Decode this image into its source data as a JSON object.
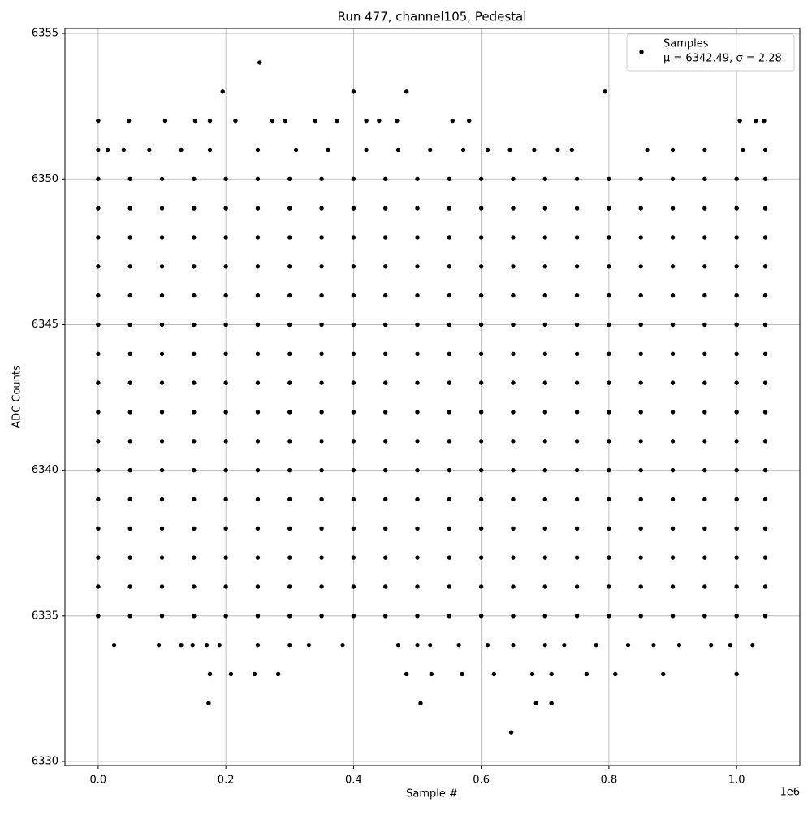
{
  "chart_data": {
    "type": "scatter",
    "title": "Run 477, channel105, Pedestal",
    "x_label": "Sample #",
    "y_label": "ADC Counts",
    "x_offset_label": "1e6",
    "xlim": [
      -52000,
      1099000
    ],
    "ylim": [
      6329.86,
      6355.17
    ],
    "xticks": [
      {
        "value": 0,
        "label": "0.0"
      },
      {
        "value": 200000,
        "label": "0.2"
      },
      {
        "value": 400000,
        "label": "0.4"
      },
      {
        "value": 600000,
        "label": "0.6"
      },
      {
        "value": 800000,
        "label": "0.8"
      },
      {
        "value": 1000000,
        "label": "1.0"
      }
    ],
    "yticks": [
      6330,
      6335,
      6340,
      6345,
      6350,
      6355
    ],
    "grid": true,
    "legend": "upper right",
    "series": [
      {
        "name": "Samples",
        "legend_note": "μ = 6342.49, σ = 2.28",
        "color": "#000000",
        "x": [
          0,
          50000,
          100000,
          150000,
          200000,
          250000,
          300000,
          350000,
          400000,
          450000,
          500000,
          550000,
          600000,
          650000,
          700000,
          750000,
          800000,
          850000,
          900000,
          950000,
          1000000,
          1045000,
          0,
          50000,
          100000,
          150000,
          200000,
          250000,
          300000,
          350000,
          400000,
          450000,
          500000,
          550000,
          600000,
          650000,
          700000,
          750000,
          800000,
          850000,
          900000,
          950000,
          1000000,
          1045000,
          0,
          50000,
          100000,
          150000,
          200000,
          250000,
          300000,
          350000,
          400000,
          450000,
          500000,
          550000,
          600000,
          650000,
          700000,
          750000,
          800000,
          850000,
          900000,
          950000,
          1000000,
          1045000,
          0,
          50000,
          100000,
          150000,
          200000,
          250000,
          300000,
          350000,
          400000,
          450000,
          500000,
          550000,
          600000,
          650000,
          700000,
          750000,
          800000,
          850000,
          900000,
          950000,
          1000000,
          1045000,
          0,
          50000,
          100000,
          150000,
          200000,
          250000,
          300000,
          350000,
          400000,
          450000,
          500000,
          550000,
          600000,
          650000,
          700000,
          750000,
          800000,
          850000,
          900000,
          950000,
          1000000,
          1045000,
          0,
          50000,
          100000,
          150000,
          200000,
          250000,
          300000,
          350000,
          400000,
          450000,
          500000,
          550000,
          600000,
          650000,
          700000,
          750000,
          800000,
          850000,
          900000,
          950000,
          1000000,
          1045000,
          0,
          50000,
          100000,
          150000,
          200000,
          250000,
          300000,
          350000,
          400000,
          450000,
          500000,
          550000,
          600000,
          650000,
          700000,
          750000,
          800000,
          850000,
          900000,
          950000,
          1000000,
          1045000,
          0,
          50000,
          100000,
          150000,
          200000,
          250000,
          300000,
          350000,
          400000,
          450000,
          500000,
          550000,
          600000,
          650000,
          700000,
          750000,
          800000,
          850000,
          900000,
          950000,
          1000000,
          1045000,
          0,
          50000,
          100000,
          150000,
          200000,
          250000,
          300000,
          350000,
          400000,
          450000,
          500000,
          550000,
          600000,
          650000,
          700000,
          750000,
          800000,
          850000,
          900000,
          950000,
          1000000,
          1045000,
          0,
          50000,
          100000,
          150000,
          200000,
          250000,
          300000,
          350000,
          400000,
          450000,
          500000,
          550000,
          600000,
          650000,
          700000,
          750000,
          800000,
          850000,
          900000,
          950000,
          1000000,
          1045000,
          0,
          50000,
          100000,
          150000,
          200000,
          250000,
          300000,
          350000,
          400000,
          450000,
          500000,
          550000,
          600000,
          650000,
          700000,
          750000,
          800000,
          850000,
          900000,
          950000,
          1000000,
          1045000,
          0,
          50000,
          100000,
          150000,
          200000,
          250000,
          300000,
          350000,
          400000,
          450000,
          500000,
          550000,
          600000,
          650000,
          700000,
          750000,
          800000,
          850000,
          900000,
          950000,
          1000000,
          1045000,
          0,
          50000,
          100000,
          150000,
          200000,
          250000,
          300000,
          350000,
          400000,
          450000,
          500000,
          550000,
          600000,
          650000,
          700000,
          750000,
          800000,
          850000,
          900000,
          950000,
          1000000,
          1045000,
          0,
          50000,
          100000,
          150000,
          200000,
          250000,
          300000,
          350000,
          400000,
          450000,
          500000,
          550000,
          600000,
          650000,
          700000,
          750000,
          800000,
          850000,
          900000,
          950000,
          1000000,
          1045000,
          0,
          50000,
          100000,
          150000,
          200000,
          250000,
          300000,
          350000,
          400000,
          450000,
          500000,
          550000,
          600000,
          650000,
          700000,
          750000,
          800000,
          850000,
          900000,
          950000,
          1000000,
          1045000,
          0,
          50000,
          100000,
          150000,
          200000,
          250000,
          300000,
          350000,
          400000,
          450000,
          500000,
          550000,
          600000,
          650000,
          700000,
          750000,
          800000,
          850000,
          900000,
          950000,
          1000000,
          1045000,
          253000,
          195000,
          400000,
          483000,
          794000,
          0,
          48000,
          105000,
          152000,
          175000,
          215000,
          273000,
          293000,
          340000,
          374000,
          420000,
          440000,
          468000,
          555000,
          581000,
          1005000,
          1030000,
          1043000,
          0,
          15000,
          40000,
          80000,
          130000,
          175000,
          250000,
          310000,
          360000,
          420000,
          470000,
          520000,
          572000,
          610000,
          645000,
          683000,
          720000,
          742000,
          860000,
          900000,
          950000,
          1010000,
          1045000,
          25000,
          95000,
          130000,
          148000,
          170000,
          190000,
          250000,
          300000,
          330000,
          383000,
          470000,
          500000,
          520000,
          565000,
          610000,
          650000,
          700000,
          730000,
          780000,
          830000,
          870000,
          910000,
          960000,
          990000,
          1025000,
          175000,
          208000,
          245000,
          282000,
          483000,
          522000,
          570000,
          620000,
          680000,
          710000,
          765000,
          810000,
          885000,
          1000000,
          173000,
          505000,
          686000,
          710000,
          647000
        ],
        "y": [
          6350,
          6350,
          6350,
          6350,
          6350,
          6350,
          6350,
          6350,
          6350,
          6350,
          6350,
          6350,
          6350,
          6350,
          6350,
          6350,
          6350,
          6350,
          6350,
          6350,
          6350,
          6350,
          6349,
          6349,
          6349,
          6349,
          6349,
          6349,
          6349,
          6349,
          6349,
          6349,
          6349,
          6349,
          6349,
          6349,
          6349,
          6349,
          6349,
          6349,
          6349,
          6349,
          6349,
          6349,
          6348,
          6348,
          6348,
          6348,
          6348,
          6348,
          6348,
          6348,
          6348,
          6348,
          6348,
          6348,
          6348,
          6348,
          6348,
          6348,
          6348,
          6348,
          6348,
          6348,
          6348,
          6348,
          6347,
          6347,
          6347,
          6347,
          6347,
          6347,
          6347,
          6347,
          6347,
          6347,
          6347,
          6347,
          6347,
          6347,
          6347,
          6347,
          6347,
          6347,
          6347,
          6347,
          6347,
          6347,
          6346,
          6346,
          6346,
          6346,
          6346,
          6346,
          6346,
          6346,
          6346,
          6346,
          6346,
          6346,
          6346,
          6346,
          6346,
          6346,
          6346,
          6346,
          6346,
          6346,
          6346,
          6346,
          6345,
          6345,
          6345,
          6345,
          6345,
          6345,
          6345,
          6345,
          6345,
          6345,
          6345,
          6345,
          6345,
          6345,
          6345,
          6345,
          6345,
          6345,
          6345,
          6345,
          6345,
          6345,
          6344,
          6344,
          6344,
          6344,
          6344,
          6344,
          6344,
          6344,
          6344,
          6344,
          6344,
          6344,
          6344,
          6344,
          6344,
          6344,
          6344,
          6344,
          6344,
          6344,
          6344,
          6344,
          6343,
          6343,
          6343,
          6343,
          6343,
          6343,
          6343,
          6343,
          6343,
          6343,
          6343,
          6343,
          6343,
          6343,
          6343,
          6343,
          6343,
          6343,
          6343,
          6343,
          6343,
          6343,
          6342,
          6342,
          6342,
          6342,
          6342,
          6342,
          6342,
          6342,
          6342,
          6342,
          6342,
          6342,
          6342,
          6342,
          6342,
          6342,
          6342,
          6342,
          6342,
          6342,
          6342,
          6342,
          6341,
          6341,
          6341,
          6341,
          6341,
          6341,
          6341,
          6341,
          6341,
          6341,
          6341,
          6341,
          6341,
          6341,
          6341,
          6341,
          6341,
          6341,
          6341,
          6341,
          6341,
          6341,
          6340,
          6340,
          6340,
          6340,
          6340,
          6340,
          6340,
          6340,
          6340,
          6340,
          6340,
          6340,
          6340,
          6340,
          6340,
          6340,
          6340,
          6340,
          6340,
          6340,
          6340,
          6340,
          6339,
          6339,
          6339,
          6339,
          6339,
          6339,
          6339,
          6339,
          6339,
          6339,
          6339,
          6339,
          6339,
          6339,
          6339,
          6339,
          6339,
          6339,
          6339,
          6339,
          6339,
          6339,
          6338,
          6338,
          6338,
          6338,
          6338,
          6338,
          6338,
          6338,
          6338,
          6338,
          6338,
          6338,
          6338,
          6338,
          6338,
          6338,
          6338,
          6338,
          6338,
          6338,
          6338,
          6338,
          6337,
          6337,
          6337,
          6337,
          6337,
          6337,
          6337,
          6337,
          6337,
          6337,
          6337,
          6337,
          6337,
          6337,
          6337,
          6337,
          6337,
          6337,
          6337,
          6337,
          6337,
          6337,
          6336,
          6336,
          6336,
          6336,
          6336,
          6336,
          6336,
          6336,
          6336,
          6336,
          6336,
          6336,
          6336,
          6336,
          6336,
          6336,
          6336,
          6336,
          6336,
          6336,
          6336,
          6336,
          6335,
          6335,
          6335,
          6335,
          6335,
          6335,
          6335,
          6335,
          6335,
          6335,
          6335,
          6335,
          6335,
          6335,
          6335,
          6335,
          6335,
          6335,
          6335,
          6335,
          6335,
          6335,
          6354,
          6353,
          6353,
          6353,
          6353,
          6352,
          6352,
          6352,
          6352,
          6352,
          6352,
          6352,
          6352,
          6352,
          6352,
          6352,
          6352,
          6352,
          6352,
          6352,
          6352,
          6352,
          6352,
          6351,
          6351,
          6351,
          6351,
          6351,
          6351,
          6351,
          6351,
          6351,
          6351,
          6351,
          6351,
          6351,
          6351,
          6351,
          6351,
          6351,
          6351,
          6351,
          6351,
          6351,
          6351,
          6351,
          6334,
          6334,
          6334,
          6334,
          6334,
          6334,
          6334,
          6334,
          6334,
          6334,
          6334,
          6334,
          6334,
          6334,
          6334,
          6334,
          6334,
          6334,
          6334,
          6334,
          6334,
          6334,
          6334,
          6334,
          6334,
          6333,
          6333,
          6333,
          6333,
          6333,
          6333,
          6333,
          6333,
          6333,
          6333,
          6333,
          6333,
          6333,
          6333,
          6332,
          6332,
          6332,
          6332,
          6331
        ]
      }
    ]
  }
}
